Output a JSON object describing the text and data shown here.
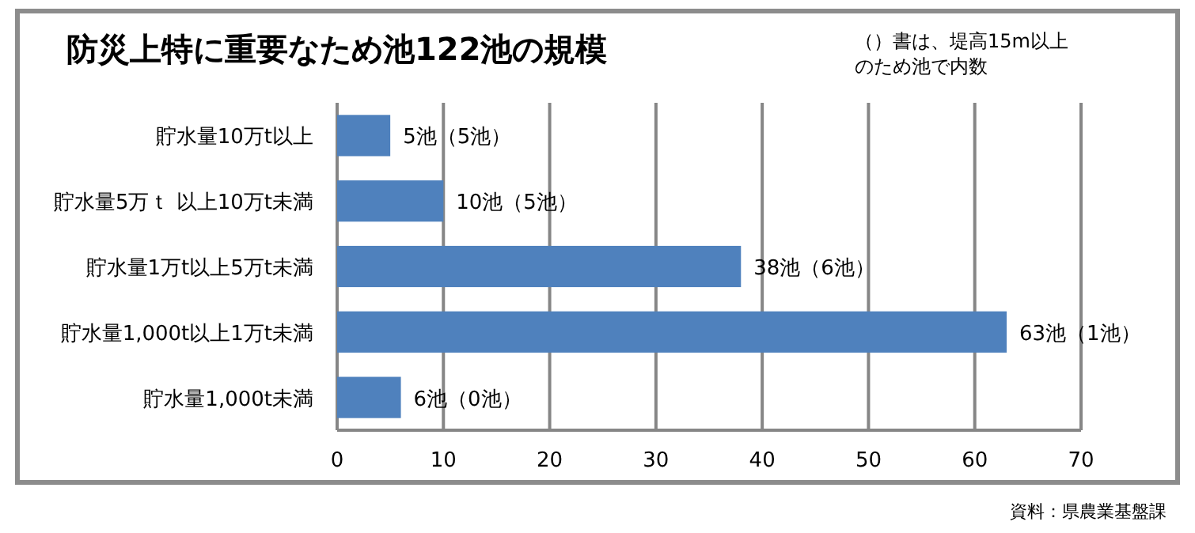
{
  "chart_data": {
    "type": "bar",
    "orientation": "horizontal",
    "title": "防災上特に重要なため池122池の規模",
    "categories": [
      "貯水量10万t以上",
      "貯水量5万ｔ 以上10万t未満",
      "貯水量1万t以上5万t未満",
      "貯水量1,000t以上1万t未満",
      "貯水量1,000t未満"
    ],
    "values": [
      5,
      10,
      38,
      63,
      6
    ],
    "value_labels": [
      "5池（5池）",
      "10池（5池）",
      "38池（6池）",
      "63池（1池）",
      "6池（0池）"
    ],
    "color": "#4f81bd",
    "xlim": [
      0,
      70
    ],
    "xticks": [
      0,
      10,
      20,
      30,
      40,
      50,
      60,
      70
    ],
    "grid": "x",
    "annotations": [
      "（）書は、堤高15m以上のため池で内数",
      "資料：県農業基盤課"
    ]
  }
}
